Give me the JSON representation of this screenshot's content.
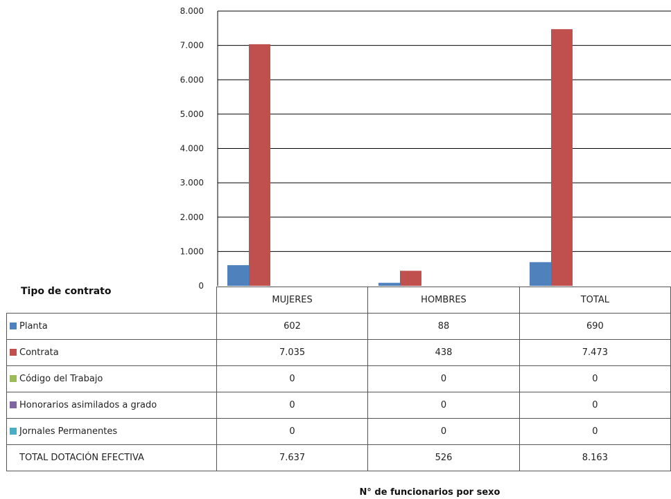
{
  "chart_data": {
    "type": "bar",
    "categories": [
      "MUJERES",
      "HOMBRES",
      "TOTAL"
    ],
    "series": [
      {
        "name": "Planta",
        "color": "#4f81bd",
        "values": [
          602,
          88,
          690
        ]
      },
      {
        "name": "Contrata",
        "color": "#c0504d",
        "values": [
          7035,
          438,
          7473
        ]
      },
      {
        "name": "Código del Trabajo",
        "color": "#9bbb59",
        "values": [
          0,
          0,
          0
        ]
      },
      {
        "name": "Honorarios asimilados a grado",
        "color": "#8064a2",
        "values": [
          0,
          0,
          0
        ]
      },
      {
        "name": "Jornales Permanentes",
        "color": "#4bacc6",
        "values": [
          0,
          0,
          0
        ]
      }
    ],
    "table": {
      "corner_label": "Tipo de contrato",
      "rows": [
        {
          "label": "Planta",
          "values": [
            "602",
            "88",
            "690"
          ]
        },
        {
          "label": "Contrata",
          "values": [
            "7.035",
            "438",
            "7.473"
          ]
        },
        {
          "label": "Código del Trabajo",
          "values": [
            "0",
            "0",
            "0"
          ]
        },
        {
          "label": "Honorarios asimilados a grado",
          "values": [
            "0",
            "0",
            "0"
          ]
        },
        {
          "label": "Jornales Permanentes",
          "values": [
            "0",
            "0",
            "0"
          ]
        }
      ],
      "total": {
        "label": "TOTAL DOTACIÓN EFECTIVA",
        "values": [
          "7.637",
          "526",
          "8.163"
        ]
      }
    },
    "title": "N° de funcionarios por sexo",
    "xlabel": "",
    "ylabel": "",
    "ylim": [
      0,
      8000
    ],
    "yticks": [
      0,
      1000,
      2000,
      3000,
      4000,
      5000,
      6000,
      7000,
      8000
    ],
    "ytick_labels": [
      "0",
      "1.000",
      "2.000",
      "3.000",
      "4.000",
      "5.000",
      "6.000",
      "7.000",
      "8.000"
    ],
    "grid": true,
    "legend": "data-table"
  }
}
